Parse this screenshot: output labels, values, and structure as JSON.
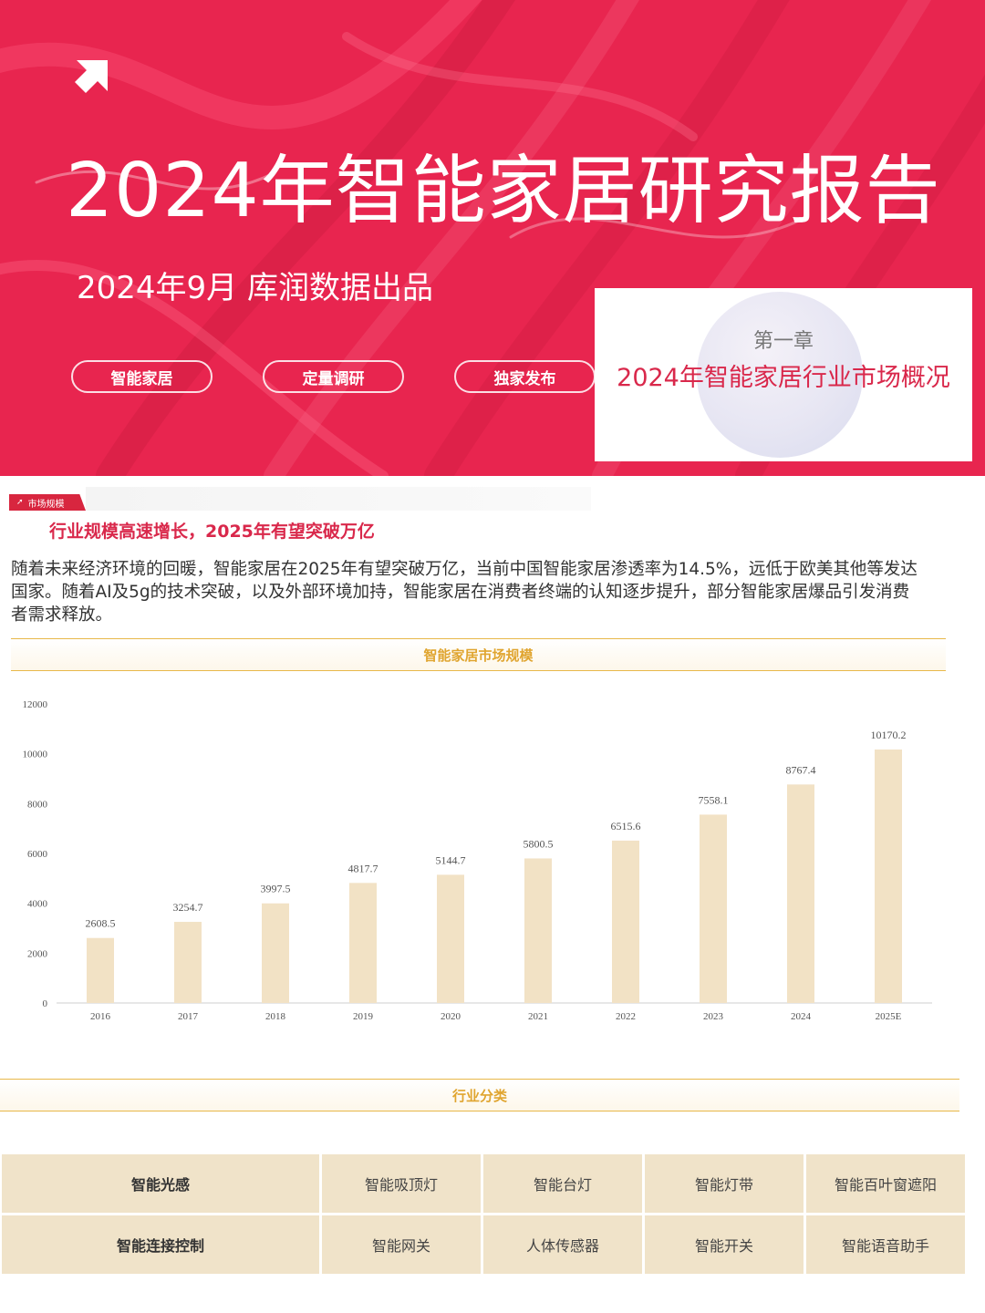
{
  "hero": {
    "title": "2024年智能家居研究报告",
    "subtitle": "2024年9月 库润数据出品",
    "tags": [
      "智能家居",
      "定量调研",
      "独家发布"
    ],
    "background_color": "#e8254f",
    "icon": "arrow-up-right-icon"
  },
  "chapter": {
    "number": "第一章",
    "title": "2024年智能家居行业市场概况"
  },
  "market": {
    "section_tag": "市场规模",
    "headline": "行业规模高速增长，2025年有望突破万亿",
    "paragraph": "随着未来经济环境的回暖，智能家居在2025年有望突破万亿，当前中国智能家居渗透率为14.5%，远低于欧美其他等发达国家。随着AI及5g的技术突破，以及外部环境加持，智能家居在消费者终端的认知逐步提升，部分智能家居爆品引发消费者需求释放。",
    "chart_band_title": "智能家居市场规模"
  },
  "chart_data": {
    "type": "bar",
    "title": "智能家居市场规模",
    "categories": [
      "2016",
      "2017",
      "2018",
      "2019",
      "2020",
      "2021",
      "2022",
      "2023",
      "2024",
      "2025E"
    ],
    "values": [
      2608.5,
      3254.7,
      3997.5,
      4817.7,
      5144.7,
      5800.5,
      6515.6,
      7558.1,
      8767.4,
      10170.2
    ],
    "value_labels": [
      "2608.5",
      "3254.7",
      "3997.5",
      "4817.7",
      "5144.7",
      "5800.5",
      "6515.6",
      "7558.1",
      "8767.4",
      "10170.2"
    ],
    "y_ticks": [
      "0",
      "2000",
      "4000",
      "6000",
      "8000",
      "10000",
      "12000"
    ],
    "ylim": [
      0,
      12000
    ],
    "xlabel": "",
    "ylabel": "",
    "grid": false,
    "bar_color": "#f2e2c5"
  },
  "categories_section": {
    "title": "行业分类",
    "rows": [
      [
        "智能光感",
        "智能吸顶灯",
        "智能台灯",
        "智能灯带",
        "智能百叶窗遮阳"
      ],
      [
        "智能连接控制",
        "智能网关",
        "人体传感器",
        "智能开关",
        "智能语音助手"
      ]
    ]
  },
  "colors": {
    "accent_red": "#d9284b",
    "gold": "#e0a530",
    "table_fill": "#f0e3c9"
  }
}
